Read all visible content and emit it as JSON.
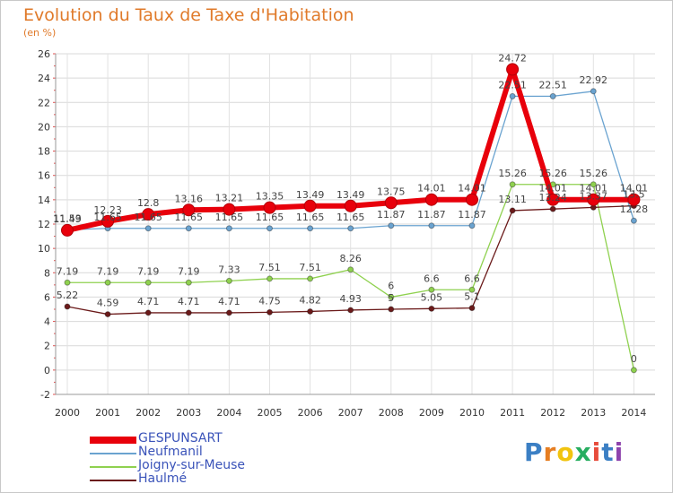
{
  "title": "Evolution du Taux de Taxe d'Habitation",
  "subtitle": "(en %)",
  "brand": {
    "letters": [
      "P",
      "r",
      "o",
      "x",
      "i",
      "t",
      "i"
    ],
    "colors": [
      "#3b7fc4",
      "#e67e22",
      "#f1c40f",
      "#27ae60",
      "#e74c3c",
      "#3b7fc4",
      "#8e44ad"
    ]
  },
  "chart_data": {
    "type": "line",
    "x": [
      "2000",
      "2001",
      "2002",
      "2003",
      "2004",
      "2005",
      "2006",
      "2007",
      "2008",
      "2009",
      "2010",
      "2011",
      "2012",
      "2013",
      "2014"
    ],
    "ylim": [
      -2,
      26
    ],
    "yticks": [
      -2,
      0,
      2,
      4,
      6,
      8,
      10,
      12,
      14,
      16,
      18,
      20,
      22,
      24,
      26
    ],
    "grid": true,
    "legend_position": "bottom-left",
    "series": [
      {
        "name": "GESPUNSART",
        "color": "#e8000b",
        "width": 6,
        "values": [
          11.49,
          12.23,
          12.8,
          13.16,
          13.21,
          13.35,
          13.49,
          13.49,
          13.75,
          14.01,
          14.01,
          24.72,
          14.01,
          14.01,
          14.01
        ],
        "labels": [
          "11.49",
          "12.23",
          "12.8",
          "13.16",
          "13.21",
          "13.35",
          "13.49",
          "13.49",
          "13.75",
          "14.01",
          "14.01",
          "24.72",
          "14.01",
          "14.01",
          "14.01"
        ]
      },
      {
        "name": "Neufmanil",
        "color": "#6aa3d0",
        "width": 1.3,
        "values": [
          11.53,
          11.65,
          11.65,
          11.65,
          11.65,
          11.65,
          11.65,
          11.65,
          11.87,
          11.87,
          11.87,
          22.51,
          22.51,
          22.92,
          12.28
        ],
        "labels": [
          "11.53",
          "11.65",
          "11.65",
          "11.65",
          "11.65",
          "11.65",
          "11.65",
          "11.65",
          "11.87",
          "11.87",
          "11.87",
          "22.51",
          "22.51",
          "22.92",
          "12.28"
        ]
      },
      {
        "name": "Joigny-sur-Meuse",
        "color": "#8fd14f",
        "width": 1.3,
        "values": [
          7.19,
          7.19,
          7.19,
          7.19,
          7.33,
          7.51,
          7.51,
          8.26,
          6,
          6.6,
          6.6,
          15.26,
          15.26,
          15.26,
          0
        ],
        "labels": [
          "7.19",
          "7.19",
          "7.19",
          "7.19",
          "7.33",
          "7.51",
          "7.51",
          "8.26",
          "6",
          "6.6",
          "6.6",
          "15.26",
          "15.26",
          "15.26",
          "0"
        ]
      },
      {
        "name": "Haulmé",
        "color": "#6b1a1a",
        "width": 1.3,
        "values": [
          5.22,
          4.59,
          4.71,
          4.71,
          4.71,
          4.75,
          4.82,
          4.93,
          5,
          5.05,
          5.1,
          13.11,
          13.24,
          13.37,
          13.5
        ],
        "labels": [
          "5.22",
          "4.59",
          "4.71",
          "4.71",
          "4.71",
          "4.75",
          "4.82",
          "4.93",
          "5",
          "5.05",
          "5.1",
          "13.11",
          "13.24",
          "13.37",
          "13.5"
        ]
      }
    ]
  }
}
